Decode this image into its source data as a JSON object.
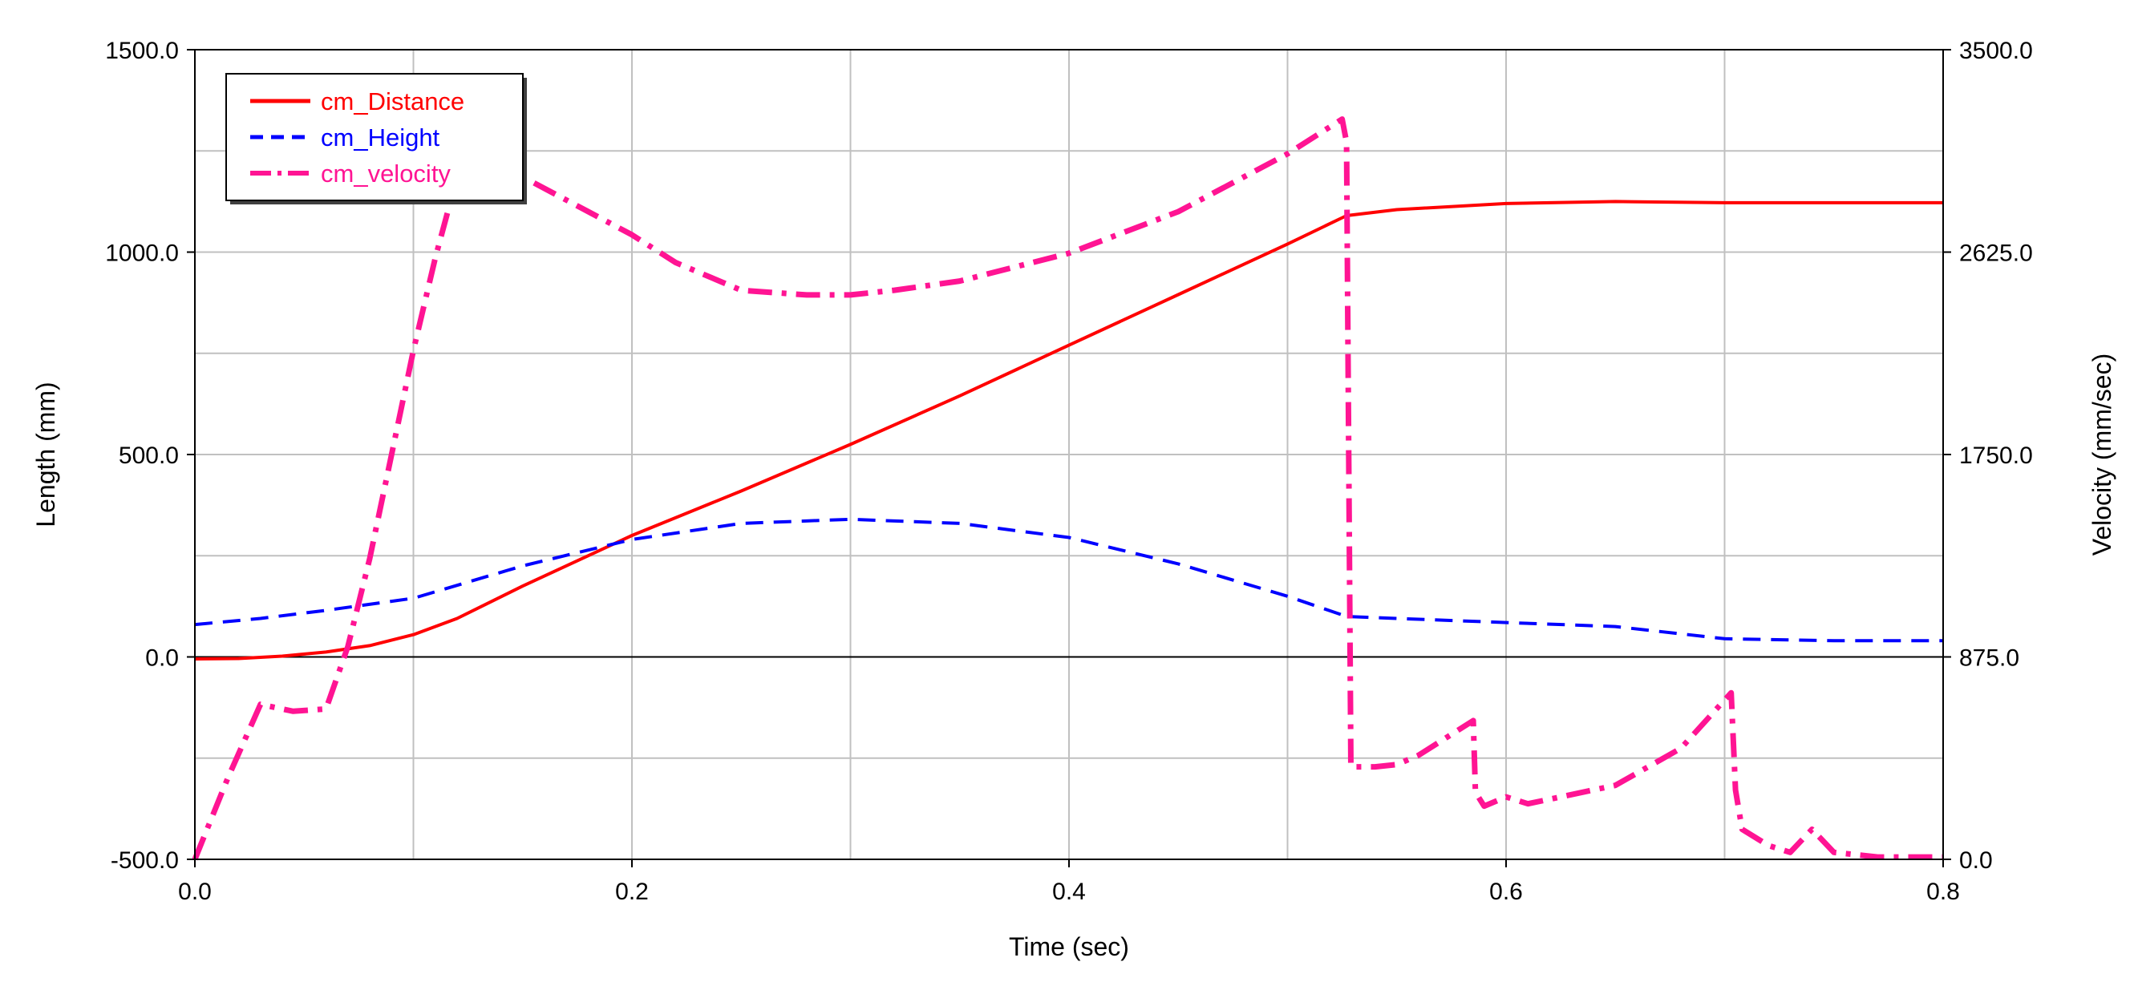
{
  "chart_data": {
    "type": "line",
    "xlabel": "Time (sec)",
    "ylabel": "Length (mm)",
    "y2label": "Velocity (mm/sec)",
    "xlim": [
      0.0,
      0.8
    ],
    "ylim": [
      -500.0,
      1500.0
    ],
    "y2lim": [
      0.0,
      3500.0
    ],
    "x_ticks": [
      "0.0",
      "0.2",
      "0.4",
      "0.6",
      "0.8"
    ],
    "y_ticks": [
      "-500.0",
      "0.0",
      "500.0",
      "1000.0",
      "1500.0"
    ],
    "y2_ticks": [
      "0.0",
      "875.0",
      "1750.0",
      "2625.0",
      "3500.0"
    ],
    "grid": true,
    "legend_position": "top-left",
    "series": [
      {
        "name": "cm_Distance",
        "axis": "left",
        "color": "#ff0000",
        "style": "solid",
        "x": [
          0.0,
          0.02,
          0.04,
          0.06,
          0.08,
          0.1,
          0.12,
          0.15,
          0.2,
          0.25,
          0.3,
          0.35,
          0.4,
          0.45,
          0.5,
          0.527,
          0.55,
          0.6,
          0.65,
          0.7,
          0.75,
          0.8
        ],
        "y": [
          -5,
          -4,
          2,
          12,
          28,
          55,
          95,
          175,
          300,
          410,
          525,
          645,
          770,
          895,
          1020,
          1090,
          1105,
          1120,
          1125,
          1122,
          1122,
          1122
        ]
      },
      {
        "name": "cm_Height",
        "axis": "left",
        "color": "#0000ff",
        "style": "dashed",
        "x": [
          0.0,
          0.03,
          0.06,
          0.1,
          0.15,
          0.2,
          0.25,
          0.3,
          0.35,
          0.4,
          0.45,
          0.5,
          0.527,
          0.55,
          0.6,
          0.65,
          0.7,
          0.75,
          0.8
        ],
        "y": [
          80,
          95,
          115,
          145,
          225,
          290,
          330,
          340,
          330,
          295,
          230,
          150,
          100,
          95,
          85,
          75,
          45,
          40,
          40
        ]
      },
      {
        "name": "cm_velocity",
        "axis": "right",
        "color": "#ff1493",
        "style": "dashdot",
        "x": [
          0.0,
          0.015,
          0.03,
          0.045,
          0.06,
          0.07,
          0.08,
          0.09,
          0.1,
          0.11,
          0.12,
          0.13,
          0.15,
          0.18,
          0.2,
          0.22,
          0.25,
          0.28,
          0.3,
          0.32,
          0.35,
          0.4,
          0.45,
          0.5,
          0.525,
          0.527,
          0.529,
          0.54,
          0.55,
          0.56,
          0.585,
          0.586,
          0.59,
          0.6,
          0.61,
          0.65,
          0.68,
          0.703,
          0.705,
          0.708,
          0.72,
          0.73,
          0.74,
          0.75,
          0.77,
          0.8
        ],
        "y": [
          0,
          350,
          670,
          640,
          650,
          920,
          1300,
          1750,
          2200,
          2600,
          2950,
          3000,
          2950,
          2800,
          2700,
          2580,
          2460,
          2440,
          2440,
          2460,
          2500,
          2620,
          2800,
          3050,
          3200,
          3100,
          400,
          400,
          410,
          450,
          600,
          290,
          230,
          270,
          240,
          320,
          480,
          720,
          300,
          130,
          60,
          30,
          130,
          30,
          10,
          10
        ]
      }
    ]
  }
}
